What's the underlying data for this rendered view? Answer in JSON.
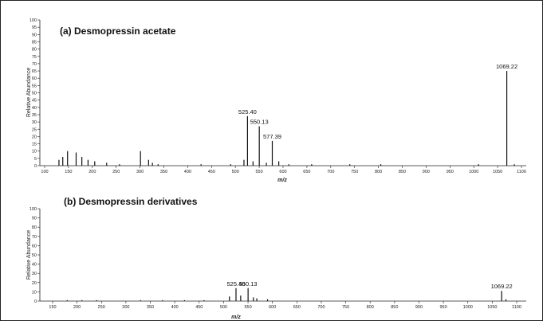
{
  "chart_data": [
    {
      "type": "bar",
      "title": "(a)  Desmopressin acetate",
      "xlabel": "m/z",
      "ylabel": "Relative Abundance",
      "xlim": [
        100,
        1100
      ],
      "ylim": [
        0,
        100
      ],
      "xticks": [
        "100",
        "150",
        "200",
        "250",
        "300",
        "350",
        "400",
        "450",
        "500",
        "550",
        "600",
        "650",
        "700",
        "750",
        "800",
        "850",
        "900",
        "950",
        "1000",
        "1050",
        "1100"
      ],
      "yticks": [
        "0",
        "5",
        "10",
        "15",
        "20",
        "25",
        "30",
        "35",
        "40",
        "45",
        "50",
        "55",
        "60",
        "65",
        "70",
        "75",
        "80",
        "85",
        "90",
        "95",
        "100"
      ],
      "peaks": [
        {
          "x": 525.4,
          "y": 34,
          "label": "525.40"
        },
        {
          "x": 550.13,
          "y": 27,
          "label": "550.13"
        },
        {
          "x": 577.39,
          "y": 17,
          "label": "577.39"
        },
        {
          "x": 1069.22,
          "y": 65,
          "label": "1069.22"
        },
        {
          "x": 148,
          "y": 10
        },
        {
          "x": 166,
          "y": 9
        },
        {
          "x": 178,
          "y": 6
        },
        {
          "x": 130,
          "y": 4
        },
        {
          "x": 138,
          "y": 6
        },
        {
          "x": 191,
          "y": 4
        },
        {
          "x": 205,
          "y": 3
        },
        {
          "x": 230,
          "y": 2
        },
        {
          "x": 257,
          "y": 1
        },
        {
          "x": 301,
          "y": 10
        },
        {
          "x": 318,
          "y": 4
        },
        {
          "x": 326,
          "y": 2
        },
        {
          "x": 338,
          "y": 1
        },
        {
          "x": 428,
          "y": 1
        },
        {
          "x": 490,
          "y": 1
        },
        {
          "x": 518,
          "y": 4
        },
        {
          "x": 537,
          "y": 3
        },
        {
          "x": 565,
          "y": 2
        },
        {
          "x": 591,
          "y": 3
        },
        {
          "x": 612,
          "y": 1
        },
        {
          "x": 660,
          "y": 1
        },
        {
          "x": 740,
          "y": 1
        },
        {
          "x": 805,
          "y": 1
        },
        {
          "x": 1010,
          "y": 1
        },
        {
          "x": 1085,
          "y": 1
        }
      ]
    },
    {
      "type": "bar",
      "title": "(b)  Desmopressin derivatives",
      "xlabel": "m/z",
      "ylabel": "Relative Abundance",
      "xlim": [
        150,
        1100
      ],
      "ylim": [
        0,
        100
      ],
      "xticks": [
        "150",
        "200",
        "250",
        "300",
        "350",
        "400",
        "450",
        "500",
        "550",
        "600",
        "650",
        "700",
        "750",
        "800",
        "850",
        "900",
        "950",
        "1000",
        "1050",
        "1100"
      ],
      "yticks": [
        "0",
        "10",
        "20",
        "30",
        "40",
        "50",
        "60",
        "70",
        "80",
        "90",
        "100"
      ],
      "peaks": [
        {
          "x": 525.4,
          "y": 14,
          "label": "525.40"
        },
        {
          "x": 550.13,
          "y": 14,
          "label": "550.13"
        },
        {
          "x": 1069.22,
          "y": 11,
          "label": "1069.22"
        },
        {
          "x": 512,
          "y": 5
        },
        {
          "x": 535,
          "y": 6
        },
        {
          "x": 561,
          "y": 4
        },
        {
          "x": 568,
          "y": 3
        },
        {
          "x": 590,
          "y": 2
        },
        {
          "x": 180,
          "y": 1
        },
        {
          "x": 210,
          "y": 1
        },
        {
          "x": 240,
          "y": 1
        },
        {
          "x": 330,
          "y": 1
        },
        {
          "x": 375,
          "y": 1
        },
        {
          "x": 420,
          "y": 1
        },
        {
          "x": 460,
          "y": 1
        },
        {
          "x": 1078,
          "y": 2
        }
      ]
    }
  ]
}
